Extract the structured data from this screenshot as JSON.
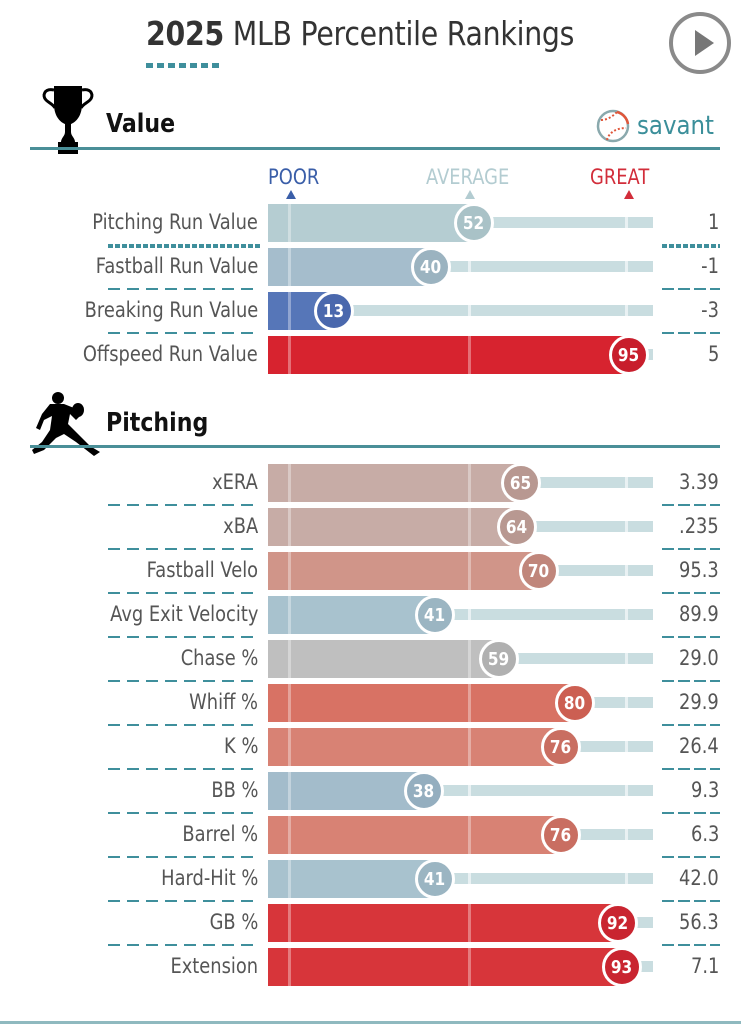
{
  "header": {
    "title_year": "2025",
    "title_rest": "MLB Percentile Rankings",
    "play_icon": "play-icon"
  },
  "brand": {
    "name": "savant",
    "icon": "baseball-icon",
    "accent_color": "#3b8f9a"
  },
  "legend": {
    "poor": "POOR",
    "average": "AVERAGE",
    "great": "GREAT",
    "poor_color": "#3a5ea8",
    "average_color": "#b3ccd1",
    "great_color": "#d22d3a"
  },
  "sections": [
    {
      "title": "Value",
      "icon": "trophy-icon"
    },
    {
      "title": "Pitching",
      "icon": "pitcher-icon"
    }
  ],
  "chart_data": [
    {
      "type": "bar",
      "title": "Value",
      "categories": [
        "Pitching Run Value",
        "Fastball Run Value",
        "Breaking Run Value",
        "Offspeed Run Value"
      ],
      "percentiles": [
        52,
        40,
        13,
        95
      ],
      "stat_values": [
        "1",
        "-1",
        "-3",
        "5"
      ],
      "colors": [
        "#b5cdd2",
        "#a5bdcc",
        "#5676b8",
        "#d7232f"
      ],
      "bubble_colors": [
        "#a9c2c7",
        "#9bb3c0",
        "#4a68ad",
        "#c81e2c"
      ],
      "xlim": [
        0,
        100
      ]
    },
    {
      "type": "bar",
      "title": "Pitching",
      "categories": [
        "xERA",
        "xBA",
        "Fastball Velo",
        "Avg Exit Velocity",
        "Chase %",
        "Whiff %",
        "K %",
        "BB %",
        "Barrel %",
        "Hard-Hit %",
        "GB %",
        "Extension"
      ],
      "percentiles": [
        65,
        64,
        70,
        41,
        59,
        80,
        76,
        38,
        76,
        41,
        92,
        93
      ],
      "stat_values": [
        "3.39",
        ".235",
        "95.3",
        "89.9",
        "29.0",
        "29.9",
        "26.4",
        "9.3",
        "6.3",
        "42.0",
        "56.3",
        "7.1"
      ],
      "colors": [
        "#c7aca6",
        "#c7aca6",
        "#d09589",
        "#a8c2ce",
        "#bfbfbf",
        "#d87264",
        "#d88274",
        "#a3bccb",
        "#d88274",
        "#a8c2ce",
        "#d7353a",
        "#d7353a"
      ],
      "bubble_colors": [
        "#b89891",
        "#b89891",
        "#c0867b",
        "#9bb5c2",
        "#b0b0b0",
        "#cc5f52",
        "#c96e61",
        "#94aebf",
        "#c96e61",
        "#9bb5c2",
        "#c92530",
        "#c92530"
      ],
      "xlim": [
        0,
        100
      ]
    }
  ]
}
